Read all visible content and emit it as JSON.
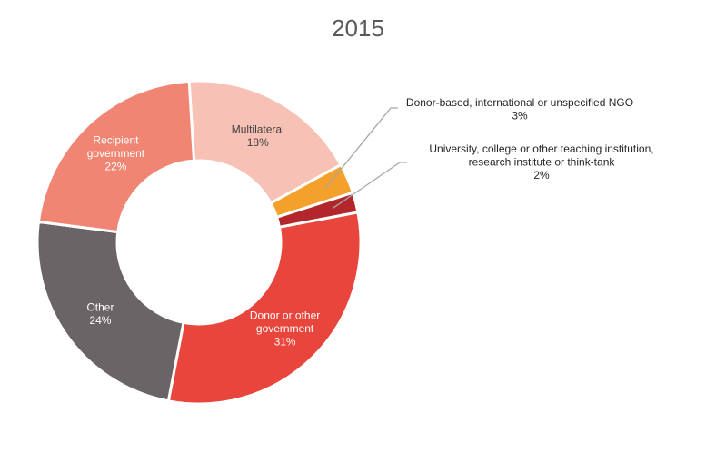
{
  "chart_data": {
    "type": "pie",
    "variant": "donut",
    "title": "2015",
    "slices": [
      {
        "label_lines": [
          "Multilateral"
        ],
        "value": 18,
        "display": "18%",
        "color": "#f7c1b5",
        "label_style": "dark"
      },
      {
        "label_lines": [
          "Donor-based, international or unspecified NGO"
        ],
        "value": 3,
        "display": "3%",
        "color": "#f4a12c",
        "label_style": "outside"
      },
      {
        "label_lines": [
          "University, college or other teaching institution,",
          "research institute or think-tank"
        ],
        "value": 2,
        "display": "2%",
        "color": "#b3272c",
        "label_style": "outside"
      },
      {
        "label_lines": [
          "Donor or other",
          "government"
        ],
        "value": 31,
        "display": "31%",
        "color": "#e8453c",
        "label_style": "inside"
      },
      {
        "label_lines": [
          "Other"
        ],
        "value": 24,
        "display": "24%",
        "color": "#6b6466",
        "label_style": "inside"
      },
      {
        "label_lines": [
          "Recipient",
          "government"
        ],
        "value": 22,
        "display": "22%",
        "color": "#ef8572",
        "label_style": "inside"
      }
    ],
    "legend": "none"
  }
}
